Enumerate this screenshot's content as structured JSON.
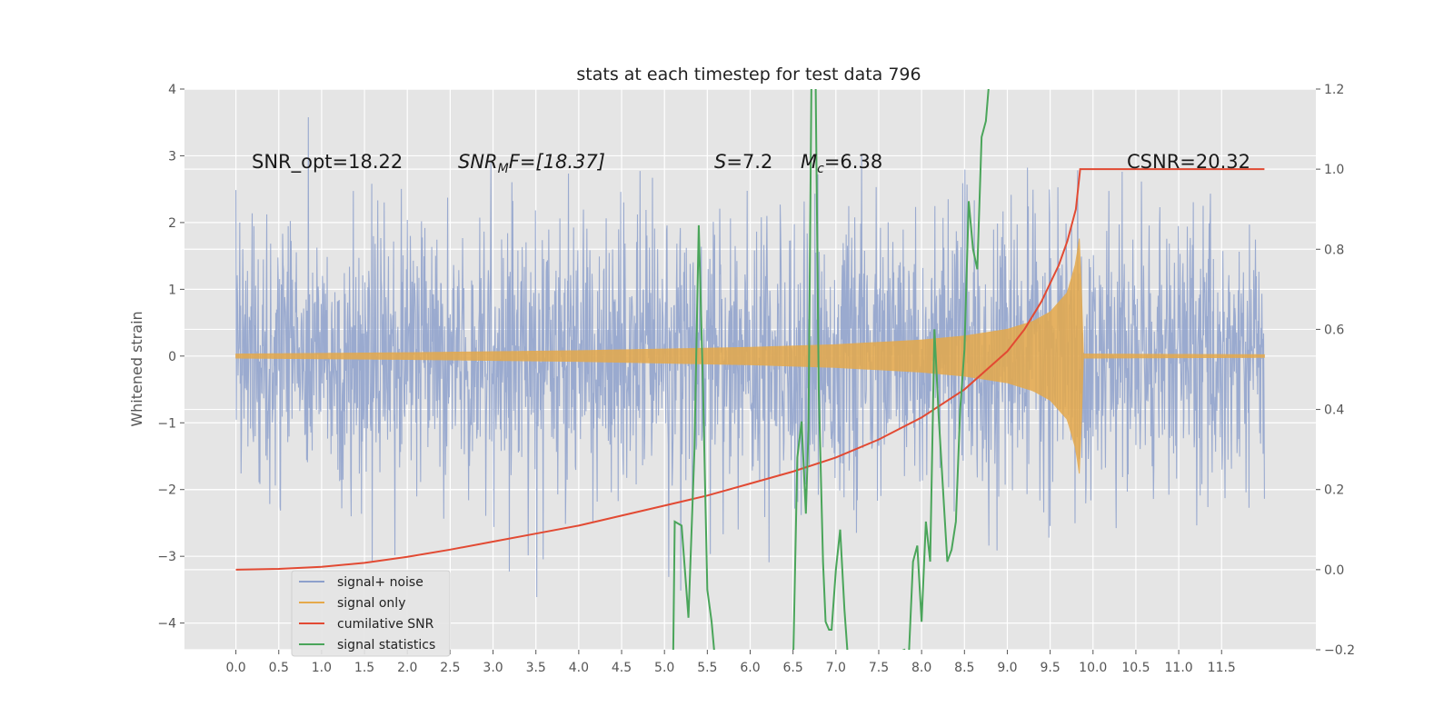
{
  "chart_data": {
    "type": "line",
    "title": "stats at each timestep for test data 796",
    "ylabel": "Whitened strain",
    "xlim": [
      -0.6,
      12.6
    ],
    "ylim": [
      -4.4,
      4.0
    ],
    "y2lim": [
      -0.2,
      1.2
    ],
    "x_ticks": [
      0.0,
      0.5,
      1.0,
      1.5,
      2.0,
      2.5,
      3.0,
      3.5,
      4.0,
      4.5,
      5.0,
      5.5,
      6.0,
      6.5,
      7.0,
      7.5,
      8.0,
      8.5,
      9.0,
      9.5,
      10.0,
      10.5,
      11.0,
      11.5
    ],
    "x_tick_labels": [
      "0.0",
      "0.5",
      "1.0",
      "1.5",
      "2.0",
      "2.5",
      "3.0",
      "3.5",
      "4.0",
      "4.5",
      "5.0",
      "5.5",
      "6.0",
      "6.5",
      "7.0",
      "7.5",
      "8.0",
      "8.5",
      "9.0",
      "9.5",
      "10.0",
      "10.5",
      "11.0",
      "11.5"
    ],
    "y_ticks": [
      -4,
      -3,
      -2,
      -1,
      0,
      1,
      2,
      3,
      4
    ],
    "y_tick_labels": [
      "−4",
      "−3",
      "−2",
      "−1",
      "0",
      "1",
      "2",
      "3",
      "4"
    ],
    "y2_ticks": [
      -0.2,
      0.0,
      0.2,
      0.4,
      0.6,
      0.8,
      1.0,
      1.2
    ],
    "y2_tick_labels": [
      "−0.2",
      "0.0",
      "0.2",
      "0.4",
      "0.6",
      "0.8",
      "1.0",
      "1.2"
    ],
    "grid": true,
    "legend_position": "lower-left",
    "annotations": {
      "snr_opt": "SNR_opt=18.22",
      "snr_mf_sym": "SNR",
      "snr_mf_sub": "M",
      "snr_mf_rest": "F=[18.37]",
      "s_sym": "S",
      "s_val": "=7.2",
      "mc_sym": "M",
      "mc_sub": "c",
      "mc_val": "=6.38",
      "csnr": "CSNR=20.32"
    },
    "series": [
      {
        "name": "signal+ noise",
        "color": "#8da0cb",
        "x_range": [
          0.0,
          12.0
        ],
        "envelope_quantiles": [
          -4.0,
          -3.2,
          -2.5,
          -1.6,
          1.6,
          2.5,
          3.3,
          3.7
        ]
      },
      {
        "name": "signal only",
        "color": "#e5a94b",
        "x_range": [
          0.0,
          12.0
        ],
        "merger_time": 9.85,
        "amplitude_envelope": {
          "x": [
            0.0,
            2.0,
            4.0,
            6.0,
            7.0,
            8.0,
            8.5,
            9.0,
            9.3,
            9.5,
            9.7,
            9.8,
            9.85,
            9.88,
            12.0
          ],
          "y": [
            0.03,
            0.05,
            0.08,
            0.13,
            0.17,
            0.24,
            0.3,
            0.4,
            0.52,
            0.66,
            0.95,
            1.4,
            1.85,
            0.03,
            0.02
          ]
        }
      },
      {
        "name": "cumilative SNR",
        "color": "#e24a33",
        "axis": "right",
        "x": [
          0.0,
          0.5,
          1.0,
          1.5,
          2.0,
          2.5,
          3.0,
          3.5,
          4.0,
          4.5,
          5.0,
          5.5,
          6.0,
          6.5,
          7.0,
          7.5,
          8.0,
          8.5,
          9.0,
          9.2,
          9.4,
          9.6,
          9.7,
          9.8,
          9.85,
          12.0
        ],
        "y": [
          0.0,
          0.002,
          0.007,
          0.017,
          0.032,
          0.05,
          0.07,
          0.09,
          0.11,
          0.135,
          0.16,
          0.185,
          0.215,
          0.245,
          0.28,
          0.325,
          0.38,
          0.45,
          0.545,
          0.6,
          0.67,
          0.76,
          0.82,
          0.9,
          1.0,
          1.0
        ]
      },
      {
        "name": "signal statistics",
        "color": "#4aa55a",
        "axis": "right",
        "x": [
          5.1,
          5.12,
          5.2,
          5.28,
          5.35,
          5.4,
          5.45,
          5.5,
          5.55,
          5.6,
          6.5,
          6.55,
          6.6,
          6.65,
          6.68,
          6.72,
          6.76,
          6.8,
          6.85,
          6.88,
          6.92,
          6.95,
          7.0,
          7.05,
          7.1,
          7.15,
          7.2,
          7.8,
          7.85,
          7.9,
          7.95,
          8.0,
          8.05,
          8.1,
          8.15,
          8.2,
          8.25,
          8.3,
          8.35,
          8.4,
          8.45,
          8.5,
          8.55,
          8.6,
          8.65,
          8.7,
          8.75,
          8.8,
          8.85
        ],
        "y": [
          -0.25,
          0.12,
          0.11,
          -0.12,
          0.3,
          0.86,
          0.45,
          -0.05,
          -0.13,
          -0.25,
          -0.25,
          0.28,
          0.37,
          0.14,
          0.35,
          1.35,
          1.3,
          0.45,
          0.02,
          -0.13,
          -0.15,
          -0.15,
          0.0,
          0.1,
          -0.1,
          -0.25,
          -0.25,
          -0.2,
          -0.22,
          0.02,
          0.06,
          -0.13,
          0.12,
          0.02,
          0.6,
          0.38,
          0.2,
          0.02,
          0.05,
          0.12,
          0.4,
          0.55,
          0.92,
          0.8,
          0.75,
          1.08,
          1.12,
          1.25,
          1.32
        ]
      }
    ]
  }
}
